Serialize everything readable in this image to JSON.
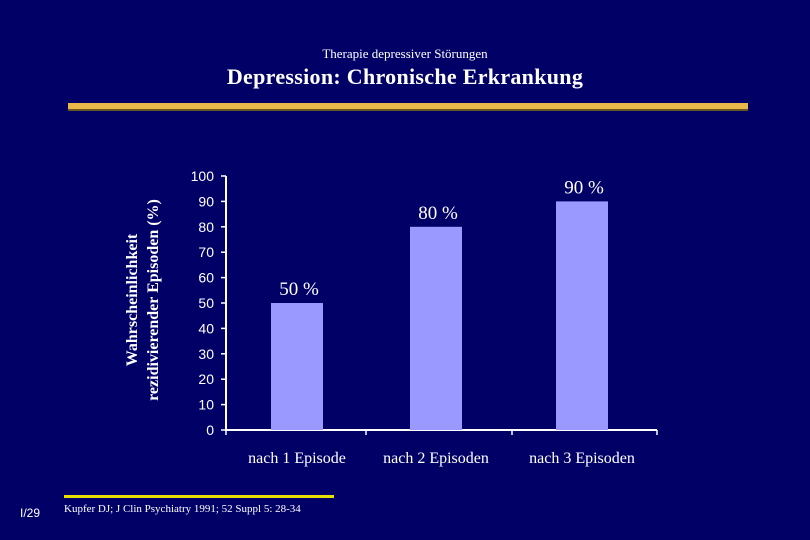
{
  "subtitle": "Therapie depressiver Störungen",
  "title": "Depression: Chronische Erkrankung",
  "page_number": "I/29",
  "source": "Kupfer DJ; J Clin Psychiatry 1991; 52 Suppl 5: 28-34",
  "colors": {
    "background": "#000066",
    "bar": "#9999ff",
    "accent_rule": "#e8b84a",
    "source_rule": "#e8e000",
    "text": "#ffffff"
  },
  "chart_data": {
    "type": "bar",
    "title": "Depression: Chronische Erkrankung",
    "ylabel_lines": [
      "Wahrscheinlichkeit",
      "rezidivierender Episoden (%)"
    ],
    "xlabel": "",
    "categories": [
      "nach 1 Episode",
      "nach 2 Episoden",
      "nach 3 Episoden"
    ],
    "values": [
      50,
      80,
      90
    ],
    "data_labels": [
      "50 %",
      "80 %",
      "90 %"
    ],
    "ylim": [
      0,
      100
    ],
    "yticks": [
      0,
      10,
      20,
      30,
      40,
      50,
      60,
      70,
      80,
      90,
      100
    ],
    "grid": false,
    "legend": "none"
  }
}
